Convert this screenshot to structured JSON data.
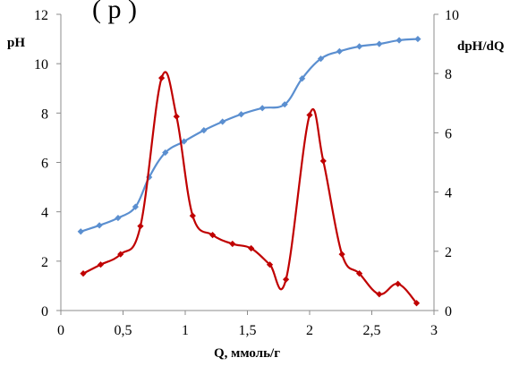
{
  "header": {
    "clipped_text": "(       р       )"
  },
  "chart_data": {
    "type": "line",
    "xlabel": "Q, ммоль/г",
    "ylabel_left": "pH",
    "ylabel_right": "dpH/dQ",
    "xlim": [
      0,
      3
    ],
    "ylim_left": [
      0,
      12
    ],
    "ylim_right": [
      0,
      10
    ],
    "x_ticks": [
      "0",
      "0,5",
      "1",
      "1,5",
      "2",
      "2,5",
      "3"
    ],
    "y_ticks_left": [
      "0",
      "2",
      "4",
      "6",
      "8",
      "10",
      "12"
    ],
    "y_ticks_right": [
      "0",
      "2",
      "4",
      "6",
      "8",
      "10"
    ],
    "grid": false,
    "legend": "none",
    "series": [
      {
        "axis": "left",
        "color": "#5B8FD0",
        "marker": "diamond",
        "x": [
          0.16,
          0.31,
          0.46,
          0.6,
          0.71,
          0.84,
          0.99,
          1.15,
          1.3,
          1.45,
          1.62,
          1.8,
          1.94,
          2.09,
          2.24,
          2.4,
          2.56,
          2.72,
          2.87
        ],
        "y": [
          3.2,
          3.45,
          3.75,
          4.2,
          5.4,
          6.4,
          6.85,
          7.3,
          7.65,
          7.95,
          8.2,
          8.35,
          9.4,
          10.2,
          10.5,
          10.7,
          10.8,
          10.95,
          11.0
        ]
      },
      {
        "axis": "right",
        "color": "#C00000",
        "marker": "diamond",
        "x": [
          0.18,
          0.32,
          0.48,
          0.64,
          0.81,
          0.93,
          1.06,
          1.22,
          1.38,
          1.53,
          1.68,
          1.81,
          2.0,
          2.11,
          2.26,
          2.4,
          2.56,
          2.71,
          2.86
        ],
        "y": [
          1.25,
          1.55,
          1.9,
          2.85,
          7.85,
          6.55,
          3.2,
          2.55,
          2.25,
          2.1,
          1.55,
          1.05,
          6.6,
          5.05,
          1.9,
          1.25,
          0.55,
          0.9,
          0.25
        ]
      }
    ]
  }
}
